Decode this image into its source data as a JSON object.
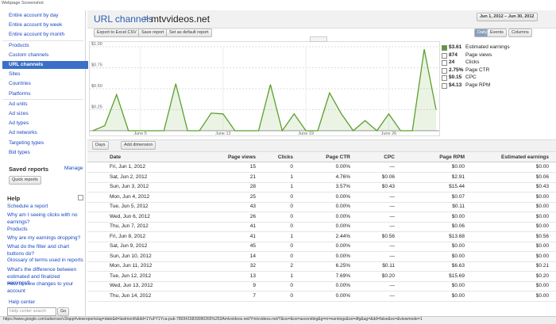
{
  "screenshot_label": "Webpage Screenshot",
  "sidebar": {
    "nav": [
      "Entire account by day",
      "Entire account by week",
      "Entire account by month",
      "Products",
      "Custom channels",
      "URL channels",
      "Sites",
      "Countries",
      "Platforms",
      "Ad units",
      "Ad sizes",
      "Ad types",
      "Ad networks",
      "Targeting types",
      "Bid types"
    ],
    "saved_reports": {
      "title": "Saved reports",
      "manage": "Manage",
      "button": "Quick reports"
    },
    "help": {
      "title": "Help",
      "links": [
        "Schedule a report",
        "Why am I seeing clicks with no earnings?",
        "Products",
        "Why are my earnings dropping?",
        "What do the filter and chart buttons do?",
        "Glossary of terms used in reports",
        "What's the difference between estimated and finalized earnings?",
        "How to view changes to your account"
      ]
    },
    "help_center": {
      "title": "Help center",
      "placeholder": "Help center search",
      "button": "Go"
    }
  },
  "header": {
    "title": "URL channels",
    "separator": ">",
    "site": "mtvvideos.net",
    "date_range": "Jun 1, 2012 – Jun 30, 2012"
  },
  "toolbar": {
    "buttons": [
      "Export to Excel CSV",
      "Save report",
      "Set as default report"
    ],
    "view": [
      "Daily",
      "Events"
    ],
    "columns": "Columns"
  },
  "chart_data": {
    "type": "line",
    "categories": [
      null,
      null,
      null,
      null,
      "June 5",
      null,
      null,
      null,
      null,
      null,
      null,
      "June 12",
      null,
      null,
      null,
      null,
      null,
      null,
      "June 19",
      null,
      null,
      null,
      null,
      null,
      null,
      "June 26",
      null,
      null,
      null,
      null
    ],
    "series": [
      {
        "name": "Estimated earnings",
        "color": "#5aa02c",
        "values": [
          0,
          0.06,
          0.43,
          0,
          0,
          0,
          0,
          0.56,
          0,
          0,
          0.21,
          0.2,
          0,
          0,
          0,
          0.55,
          0,
          0.2,
          0,
          0,
          0.45,
          0.2,
          0,
          0.12,
          0,
          0.2,
          0,
          0,
          0.97,
          0.25
        ]
      }
    ],
    "ylim": [
      0,
      1
    ],
    "yticks": [
      {
        "value": 0.25,
        "label": "$0.25"
      },
      {
        "value": 0.5,
        "label": "$0.50"
      },
      {
        "value": 0.75,
        "label": "$0.75"
      },
      {
        "value": 1,
        "label": "$1.00"
      }
    ],
    "grid": true
  },
  "metrics": [
    {
      "value": "$3.61",
      "label": "Estimated earnings"
    },
    {
      "value": "874",
      "label": "Page views"
    },
    {
      "value": "24",
      "label": "Clicks"
    },
    {
      "value": "2.75%",
      "label": "Page CTR"
    },
    {
      "value": "$0.15",
      "label": "CPC"
    },
    {
      "value": "$4.13",
      "label": "Page RPM"
    }
  ],
  "dimension": {
    "days": "Days",
    "add": "Add dimension"
  },
  "table": {
    "headers": [
      "Date",
      "Page views",
      "Clicks",
      "Page CTR",
      "CPC",
      "Page RPM",
      "Estimated earnings"
    ],
    "rows": [
      [
        "Fri, Jun 1, 2012",
        "15",
        "0",
        "0.00%",
        "—",
        "$0.00",
        "$0.00"
      ],
      [
        "Sat, Jun 2, 2012",
        "21",
        "1",
        "4.76%",
        "$0.06",
        "$2.91",
        "$0.06"
      ],
      [
        "Sun, Jun 3, 2012",
        "28",
        "1",
        "3.57%",
        "$0.43",
        "$15.44",
        "$0.43"
      ],
      [
        "Mon, Jun 4, 2012",
        "25",
        "0",
        "0.00%",
        "—",
        "$0.07",
        "$0.00"
      ],
      [
        "Tue, Jun 5, 2012",
        "43",
        "0",
        "0.00%",
        "—",
        "$0.11",
        "$0.00"
      ],
      [
        "Wed, Jun 6, 2012",
        "26",
        "0",
        "0.00%",
        "—",
        "$0.00",
        "$0.00"
      ],
      [
        "Thu, Jun 7, 2012",
        "41",
        "0",
        "0.00%",
        "—",
        "$0.06",
        "$0.00"
      ],
      [
        "Fri, Jun 8, 2012",
        "41",
        "1",
        "2.44%",
        "$0.56",
        "$13.68",
        "$0.56"
      ],
      [
        "Sat, Jun 9, 2012",
        "45",
        "0",
        "0.00%",
        "—",
        "$0.00",
        "$0.00"
      ],
      [
        "Sun, Jun 10, 2012",
        "14",
        "0",
        "0.00%",
        "—",
        "$0.00",
        "$0.00"
      ],
      [
        "Mon, Jun 11, 2012",
        "32",
        "2",
        "6.25%",
        "$0.11",
        "$6.63",
        "$0.21"
      ],
      [
        "Tue, Jun 12, 2012",
        "13",
        "1",
        "7.69%",
        "$0.20",
        "$15.69",
        "$0.20"
      ],
      [
        "Wed, Jun 13, 2012",
        "9",
        "0",
        "0.00%",
        "—",
        "$0.00",
        "$0.00"
      ],
      [
        "Thu, Jun 14, 2012",
        "7",
        "0",
        "0.00%",
        "—",
        "$0.00",
        "$0.00"
      ]
    ]
  },
  "status_url": "https://www.google.com/adsense/v3/app#viewreports/ag=date&d=lastmonth&dd=1YuFY1Yca-pub-7803415839990265%253Amtvvideos.net/Ymtvvideos.net/Y&oo=&oo=ascending&g=m=earnings&oo=dfg&ag=&dd=false&oc=&viewmode=1"
}
